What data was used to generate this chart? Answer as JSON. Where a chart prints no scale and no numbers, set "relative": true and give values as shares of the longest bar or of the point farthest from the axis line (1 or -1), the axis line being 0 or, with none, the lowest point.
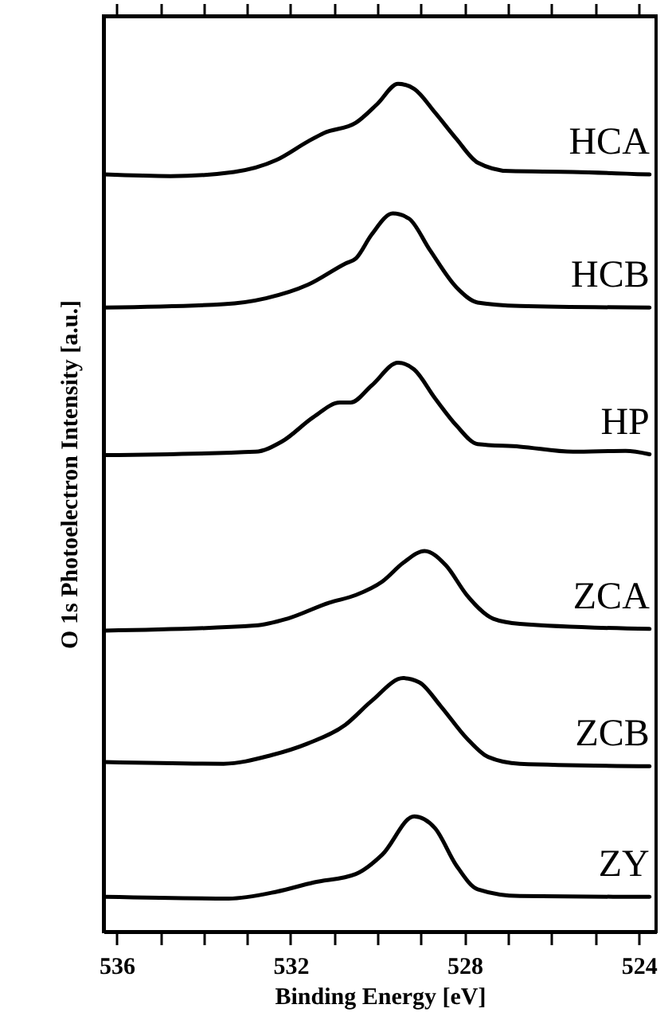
{
  "chart_data": {
    "type": "line",
    "relative": true,
    "xlabel": "Binding Energy [eV]",
    "ylabel": "O 1s Photoelectron Intensity [a.u.]",
    "xlim": [
      536.3,
      523.6
    ],
    "xticks": [
      536,
      {
        "value": 535,
        "label": null
      },
      {
        "value": 534,
        "label": null
      },
      {
        "value": 533,
        "label": null
      },
      532,
      {
        "value": 531,
        "label": null
      },
      {
        "value": 530,
        "label": null
      },
      {
        "value": 529,
        "label": null
      },
      528,
      {
        "value": 527,
        "label": null
      },
      {
        "value": 526,
        "label": null
      },
      {
        "value": 525,
        "label": null
      },
      524
    ],
    "series": [
      {
        "name": "HCA",
        "color": "#000000",
        "x": [
          536.28,
          534.76,
          533.3,
          532.33,
          531.6,
          531.23,
          530.5,
          530.01,
          529.53,
          529.16,
          528.68,
          528.19,
          527.7,
          526.97,
          525.51,
          523.75
        ],
        "values": [
          0.893,
          0.891,
          0.896,
          0.91,
          0.932,
          0.942,
          0.954,
          0.976,
          1.0,
          0.994,
          0.966,
          0.935,
          0.907,
          0.897,
          0.896,
          0.893
        ]
      },
      {
        "name": "HCB",
        "color": "#000000",
        "x": [
          536.28,
          533.54,
          532.57,
          531.6,
          530.74,
          530.5,
          530.14,
          529.65,
          529.28,
          528.8,
          528.19,
          527.7,
          526.73,
          523.75
        ],
        "values": [
          0.736,
          0.74,
          0.747,
          0.763,
          0.788,
          0.794,
          0.822,
          0.847,
          0.841,
          0.804,
          0.76,
          0.742,
          0.738,
          0.736
        ]
      },
      {
        "name": "HP",
        "color": "#000000",
        "x": [
          536.28,
          532.81,
          532.2,
          531.47,
          530.87,
          530.62,
          530.14,
          529.53,
          529.16,
          528.68,
          528.19,
          527.7,
          526.73,
          525.51,
          524.3,
          523.75
        ],
        "values": [
          0.562,
          0.566,
          0.578,
          0.607,
          0.624,
          0.624,
          0.644,
          0.671,
          0.663,
          0.629,
          0.597,
          0.575,
          0.572,
          0.566,
          0.567,
          0.563
        ]
      },
      {
        "name": "ZCA",
        "color": "#000000",
        "x": [
          536.28,
          532.81,
          532.08,
          531.11,
          530.5,
          529.89,
          529.41,
          528.92,
          528.43,
          527.95,
          527.34,
          526.73,
          523.75
        ],
        "values": [
          0.355,
          0.361,
          0.369,
          0.388,
          0.397,
          0.413,
          0.435,
          0.449,
          0.432,
          0.397,
          0.369,
          0.363,
          0.357
        ]
      },
      {
        "name": "ZCB",
        "color": "#000000",
        "x": [
          536.28,
          533.54,
          532.45,
          531.6,
          530.74,
          530.14,
          529.41,
          529.04,
          528.55,
          527.95,
          527.46,
          526.73,
          523.75
        ],
        "values": [
          0.2,
          0.198,
          0.208,
          0.222,
          0.244,
          0.272,
          0.299,
          0.294,
          0.266,
          0.228,
          0.206,
          0.198,
          0.195
        ]
      },
      {
        "name": "ZY",
        "color": "#000000",
        "x": [
          536.28,
          533.42,
          532.33,
          531.47,
          530.5,
          529.89,
          529.16,
          528.68,
          528.19,
          527.7,
          526.73,
          523.75
        ],
        "values": [
          0.041,
          0.039,
          0.047,
          0.058,
          0.068,
          0.091,
          0.136,
          0.122,
          0.078,
          0.05,
          0.042,
          0.041
        ]
      }
    ]
  }
}
